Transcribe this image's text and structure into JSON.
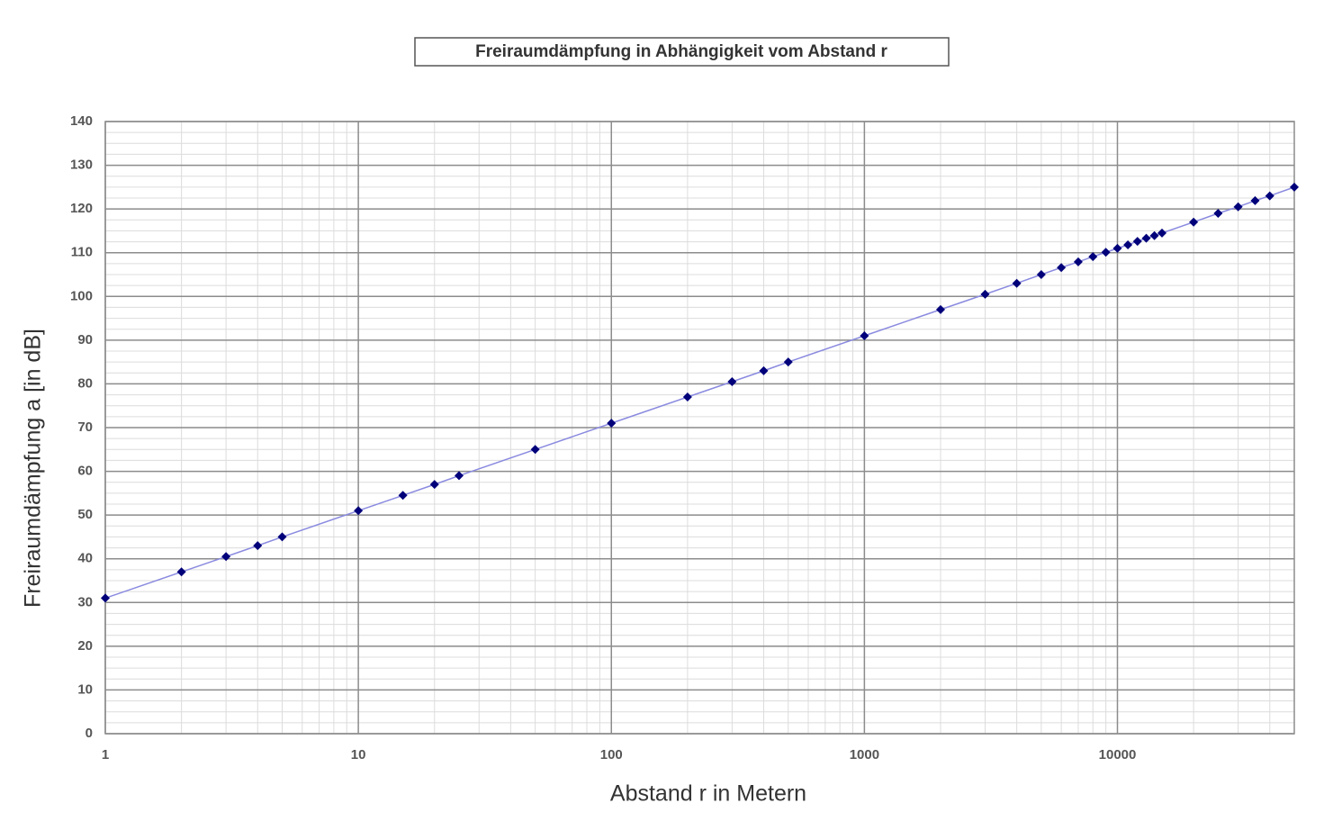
{
  "chart_data": {
    "type": "line",
    "title": "Freiraumdämpfung in Abhängigkeit vom Abstand r",
    "x_label": "Abstand r in Metern",
    "y_label": "Freiraumdämpfung a [in dB]",
    "x": [
      1,
      2,
      3,
      4,
      5,
      10,
      15,
      20,
      25,
      50,
      100,
      200,
      300,
      400,
      500,
      1000,
      2000,
      3000,
      4000,
      5000,
      6000,
      7000,
      8000,
      9000,
      10000,
      11000,
      12000,
      13000,
      14000,
      15000,
      20000,
      25000,
      30000,
      35000,
      40000,
      50000
    ],
    "series": [
      {
        "color": "#00007a",
        "line_color": "#8a8ae0",
        "values": [
          31,
          37,
          40.5,
          43,
          45,
          51,
          54.5,
          57,
          59,
          65,
          71,
          77,
          80.5,
          83,
          85,
          91,
          97,
          100.5,
          103,
          105,
          106.6,
          107.9,
          109.1,
          110.1,
          111,
          111.8,
          112.6,
          113.3,
          113.9,
          114.5,
          117,
          119,
          120.5,
          121.9,
          123,
          125
        ]
      }
    ],
    "xlim": [
      1,
      50000
    ],
    "xticks": [
      1,
      10,
      100,
      1000,
      10000
    ],
    "x_log": true,
    "ylim": [
      0,
      140
    ],
    "yticks": [
      0,
      10,
      20,
      30,
      40,
      50,
      60,
      70,
      80,
      90,
      100,
      110,
      120,
      130,
      140
    ],
    "grid": true,
    "minor_grid": true
  }
}
